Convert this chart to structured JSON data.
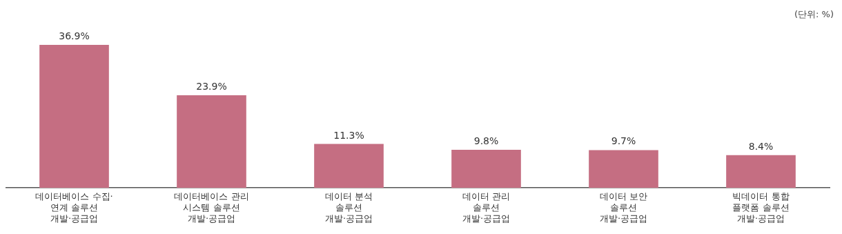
{
  "chart_data": {
    "type": "bar",
    "categories": [
      "데이터베이스 수집·\n연계 솔루션\n개발·공급업",
      "데이터베이스 관리\n시스템 솔루션\n개발·공급업",
      "데이터 분석\n솔루션\n개발·공급업",
      "데이터 관리\n솔루션\n개발·공급업",
      "데이터 보안\n솔루션\n개발·공급업",
      "빅데이터 통합\n플랫폼 솔루션\n개발·공급업"
    ],
    "values": [
      36.9,
      23.9,
      11.3,
      9.8,
      9.7,
      8.4
    ],
    "value_labels": [
      "36.9%",
      "23.9%",
      "11.3%",
      "9.8%",
      "9.7%",
      "8.4%"
    ],
    "color": "#c56e82",
    "annotations": [
      "(단위: %)"
    ],
    "grid": false,
    "legend": false
  }
}
